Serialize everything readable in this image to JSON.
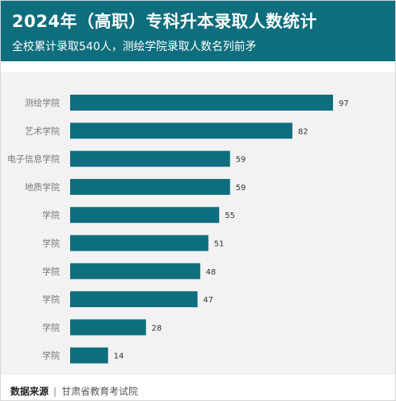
{
  "header": {
    "title": "2024年（高职）专科升本录取人数统计",
    "subtitle": "全校累计录取540人，测绘学院录取人数名列前矛"
  },
  "footer": {
    "source_label": "数据来源",
    "source_org": "甘肃省教育考试院"
  },
  "colors": {
    "header_bg": "#0f6e7e",
    "bar": "#0f6e7e",
    "plot_bg": "#f2f2f2"
  },
  "chart_data": {
    "type": "bar",
    "orientation": "horizontal",
    "categories": [
      "测绘学院",
      "艺术学院",
      "电子信息学院",
      "地质学院",
      "学院",
      "学院",
      "学院",
      "学院",
      "学院",
      "学院"
    ],
    "values": [
      97,
      82,
      59,
      59,
      55,
      51,
      48,
      47,
      28,
      14
    ],
    "title": "2024年（高职）专科升本录取人数统计",
    "xlabel": "",
    "ylabel": "",
    "xlim": [
      0,
      100
    ],
    "grid": false,
    "legend": "none"
  }
}
